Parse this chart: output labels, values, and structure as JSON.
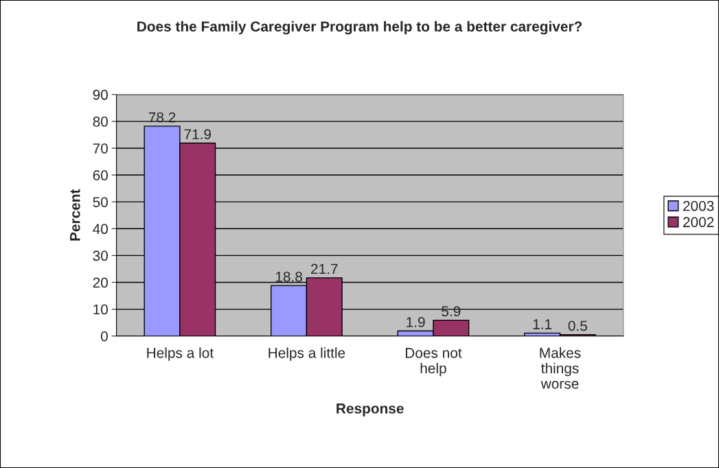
{
  "chart_data": {
    "type": "bar",
    "title": "Does the Family Caregiver Program help to be a better caregiver?",
    "xlabel": "Response",
    "ylabel": "Percent",
    "categories": [
      "Helps a lot",
      "Helps a little",
      "Does not\nhelp",
      "Makes\nthings\nworse"
    ],
    "series": [
      {
        "name": "2003",
        "color": "#9999ff",
        "values": [
          78.2,
          18.8,
          1.9,
          1.1
        ]
      },
      {
        "name": "2002",
        "color": "#993366",
        "values": [
          71.9,
          21.7,
          5.9,
          0.5
        ]
      }
    ],
    "ylim": [
      0,
      90
    ],
    "yticks": [
      0,
      10,
      20,
      30,
      40,
      50,
      60,
      70,
      80,
      90
    ],
    "grid": "y",
    "legend": "right",
    "data_labels": true
  }
}
